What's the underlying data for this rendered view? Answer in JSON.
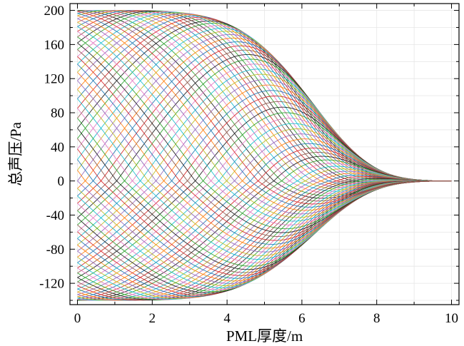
{
  "chart_data": {
    "type": "line",
    "xlabel": "PML厚度/m",
    "ylabel": "总声压/Pa",
    "xlim": [
      -0.2,
      10.2
    ],
    "ylim": [
      -145,
      208
    ],
    "x_ticks": [
      0,
      2,
      4,
      6,
      8,
      10
    ],
    "y_ticks": [
      -120,
      -80,
      -40,
      0,
      40,
      80,
      120,
      160,
      200
    ],
    "grid": true,
    "legend": "none",
    "series_count": 100,
    "series_description_values": {
      "x_range": [
        0,
        10
      ],
      "positive_envelope_start": 200,
      "negative_envelope_start": -140,
      "decay_start": 0,
      "decay_to_zero_at": 9.5
    },
    "colors": [
      "#1f1f1f",
      "#2ca02c",
      "#e377c2",
      "#17becf",
      "#bcbd22",
      "#9467bd",
      "#ff7f0e",
      "#1f77b4",
      "#d62728",
      "#8c564b"
    ]
  }
}
